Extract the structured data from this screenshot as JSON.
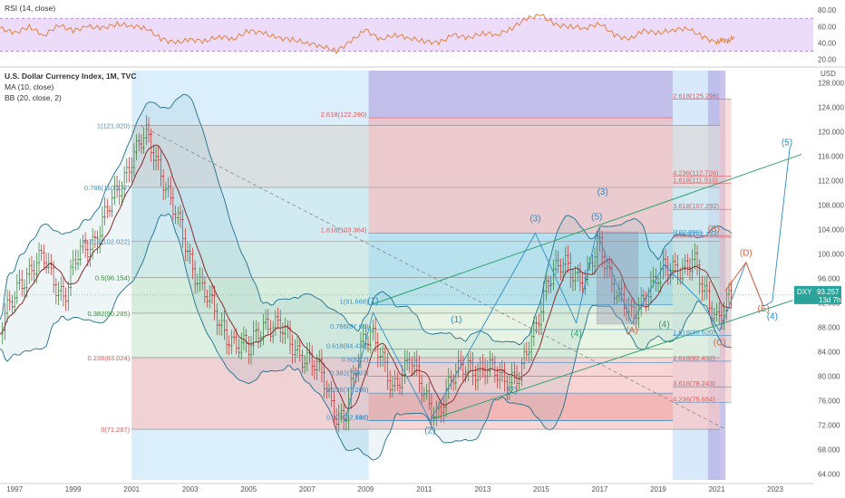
{
  "legend": {
    "rsi": "RSI (14, close)",
    "symbol": "U.S. Dollar Currency Index, 1M, TVC",
    "ma": "MA (10, close)",
    "bb": "BB (20, close, 2)"
  },
  "price_tag": {
    "ticker": "DXY",
    "value": "93.257",
    "countdown": "13d 7h"
  },
  "axis_currency": "USD",
  "colors": {
    "rsi_line": "#e8833a",
    "rsi_band": "#d9b8f2",
    "ma": "#8b2a2a",
    "bb": "#1f6f8b",
    "bull": "#2e7d32",
    "bear": "#c62828",
    "fib_red": "#e05a5a",
    "fib_blue": "#3e90c4",
    "wave_blue": "#2b8cc4",
    "wave_red": "#e06040",
    "trend_green": "#2aa36b"
  },
  "chart_data": [
    {
      "type": "line",
      "title": "RSI (14, close)",
      "x": [
        1996.5,
        1997,
        1997.5,
        1998,
        1998.5,
        1999,
        1999.5,
        2000,
        2000.5,
        2001,
        2001.5,
        2002,
        2002.5,
        2003,
        2003.5,
        2004,
        2004.5,
        2005,
        2005.5,
        2006,
        2006.5,
        2007,
        2007.5,
        2008,
        2008.5,
        2009,
        2009.5,
        2010,
        2010.5,
        2011,
        2011.5,
        2012,
        2012.5,
        2013,
        2013.5,
        2014,
        2014.5,
        2015,
        2015.5,
        2016,
        2016.5,
        2017,
        2017.5,
        2018,
        2018.5,
        2019,
        2019.5,
        2020,
        2020.5,
        2021,
        2021.2,
        2021.4,
        2021.6
      ],
      "values": [
        58,
        52,
        60,
        49,
        62,
        55,
        60,
        58,
        63,
        61,
        58,
        45,
        40,
        44,
        42,
        48,
        45,
        55,
        52,
        46,
        44,
        40,
        36,
        30,
        42,
        56,
        44,
        50,
        46,
        42,
        40,
        50,
        46,
        52,
        50,
        58,
        70,
        74,
        62,
        60,
        58,
        64,
        50,
        44,
        55,
        52,
        56,
        58,
        48,
        40,
        44,
        42,
        48
      ],
      "yticks": [
        20,
        40,
        60,
        80
      ],
      "ylim": [
        15,
        88
      ],
      "bands": [
        30,
        70
      ]
    },
    {
      "type": "candlestick",
      "title": "U.S. Dollar Currency Index, 1M, TVC",
      "xticks": [
        "1997",
        "1999",
        "2001",
        "2003",
        "2005",
        "2007",
        "2009",
        "2011",
        "2013",
        "2015",
        "2017",
        "2019",
        "2021",
        "2023"
      ],
      "yticks": [
        64,
        68,
        72,
        76,
        80,
        84,
        88,
        92,
        96,
        100,
        104,
        108,
        112,
        116,
        120,
        124,
        128
      ],
      "ylim": [
        63,
        130
      ],
      "last_price": 93.257,
      "price_path": [
        [
          1996.5,
          87
        ],
        [
          1997.2,
          96
        ],
        [
          1998,
          99
        ],
        [
          1998.7,
          93
        ],
        [
          1999.2,
          100
        ],
        [
          1999.8,
          103
        ],
        [
          2000.5,
          110
        ],
        [
          2001,
          116
        ],
        [
          2001.5,
          119
        ],
        [
          2002,
          114
        ],
        [
          2002.5,
          106
        ],
        [
          2003,
          99
        ],
        [
          2003.5,
          94
        ],
        [
          2004,
          88
        ],
        [
          2004.5,
          86
        ],
        [
          2005,
          84
        ],
        [
          2005.5,
          89
        ],
        [
          2006,
          88
        ],
        [
          2006.5,
          85
        ],
        [
          2007,
          83
        ],
        [
          2007.5,
          80
        ],
        [
          2008,
          74
        ],
        [
          2008.3,
          73
        ],
        [
          2008.9,
          86
        ],
        [
          2009.2,
          88
        ],
        [
          2009.9,
          77
        ],
        [
          2010.5,
          84
        ],
        [
          2011,
          76
        ],
        [
          2011.4,
          74
        ],
        [
          2011.9,
          79
        ],
        [
          2012.5,
          82
        ],
        [
          2013,
          81
        ],
        [
          2013.6,
          80
        ],
        [
          2014.3,
          80
        ],
        [
          2014.8,
          88
        ],
        [
          2015.2,
          96
        ],
        [
          2015.8,
          98
        ],
        [
          2016.5,
          96
        ],
        [
          2017,
          101
        ],
        [
          2017.5,
          95
        ],
        [
          2018.1,
          89
        ],
        [
          2018.7,
          95
        ],
        [
          2019.2,
          97
        ],
        [
          2019.8,
          98
        ],
        [
          2020.2,
          99
        ],
        [
          2020.5,
          94
        ],
        [
          2021,
          90
        ],
        [
          2021.5,
          93
        ]
      ],
      "fib_levels_left": [
        {
          "label": "1(121.020)",
          "value": 121.02
        },
        {
          "label": "0.786(110.877)",
          "value": 110.877
        },
        {
          "label": "0.618(102.022)",
          "value": 102.022
        },
        {
          "label": "0.5(96.154)",
          "value": 96.154
        },
        {
          "label": "0.382(90.285)",
          "value": 90.285
        },
        {
          "label": "0.236(83.024)",
          "value": 83.024
        },
        {
          "label": "0(71.287)",
          "value": 71.287
        }
      ],
      "fib_levels_mid": [
        {
          "label": "2.618(122.290)",
          "value": 122.29
        },
        {
          "label": "1.618(103.364)",
          "value": 103.364
        },
        {
          "label": "1(91.668)",
          "value": 91.668
        },
        {
          "label": "0.786(87.61)",
          "value": 87.61
        },
        {
          "label": "0.618(84.433)",
          "value": 84.433
        },
        {
          "label": "0.5(82.2)",
          "value": 82.2
        },
        {
          "label": "0.382(79.97)",
          "value": 79.97
        },
        {
          "label": "0.236(77.206)",
          "value": 77.206
        },
        {
          "label": "(72.742)",
          "value": 72.742
        },
        {
          "label": "0.000(72.698)",
          "value": 72.698
        }
      ],
      "fib_levels_right": [
        {
          "label": "2.618(125.296)",
          "value": 125.296
        },
        {
          "label": "4.236(112.726)",
          "value": 112.726
        },
        {
          "label": "1.618(111.510)",
          "value": 111.51
        },
        {
          "label": "3.618(107.292)",
          "value": 107.292
        },
        {
          "label": "2.618(102.734)",
          "value": 102.734
        },
        {
          "label": "(102.990)",
          "value": 102.99
        },
        {
          "label": "1.618(86.620)",
          "value": 86.62
        },
        {
          "label": "2.618(82.432)",
          "value": 82.432
        },
        {
          "label": "3.618(78.243)",
          "value": 78.243
        },
        {
          "label": "4.236(75.654)",
          "value": 75.654
        }
      ],
      "waves": [
        {
          "label": "(1)",
          "x": 2009.25,
          "y": 91.8,
          "color": "blue"
        },
        {
          "label": "(1)",
          "x": 2012.1,
          "y": 88.8,
          "color": "blue"
        },
        {
          "label": "(2)",
          "x": 2011.2,
          "y": 70.6,
          "color": "blue"
        },
        {
          "label": "(2)",
          "x": 2014.0,
          "y": 77.2,
          "color": "blue"
        },
        {
          "label": "(3)",
          "x": 2014.8,
          "y": 105.3,
          "color": "blue"
        },
        {
          "label": "(3)",
          "x": 2017.1,
          "y": 109.7,
          "color": "blue"
        },
        {
          "label": "(4)",
          "x": 2016.2,
          "y": 86.5,
          "color": "green"
        },
        {
          "label": "(4)",
          "x": 2019.2,
          "y": 88.0,
          "color": "green"
        },
        {
          "label": "(5)",
          "x": 2016.9,
          "y": 105.6,
          "color": "blue"
        },
        {
          "label": "(5)",
          "x": 2023.4,
          "y": 117.8,
          "color": "blue"
        },
        {
          "label": "(4)",
          "x": 2022.9,
          "y": 89.3,
          "color": "blue"
        },
        {
          "label": "(A)",
          "x": 2018.1,
          "y": 87.0,
          "color": "red"
        },
        {
          "label": "(B)",
          "x": 2020.9,
          "y": 103.6,
          "color": "red"
        },
        {
          "label": "(C)",
          "x": 2021.1,
          "y": 85.0,
          "color": "red"
        },
        {
          "label": "(D)",
          "x": 2022.0,
          "y": 99.7,
          "color": "red"
        },
        {
          "label": "(E)",
          "x": 2022.6,
          "y": 90.6,
          "color": "red"
        }
      ]
    }
  ]
}
